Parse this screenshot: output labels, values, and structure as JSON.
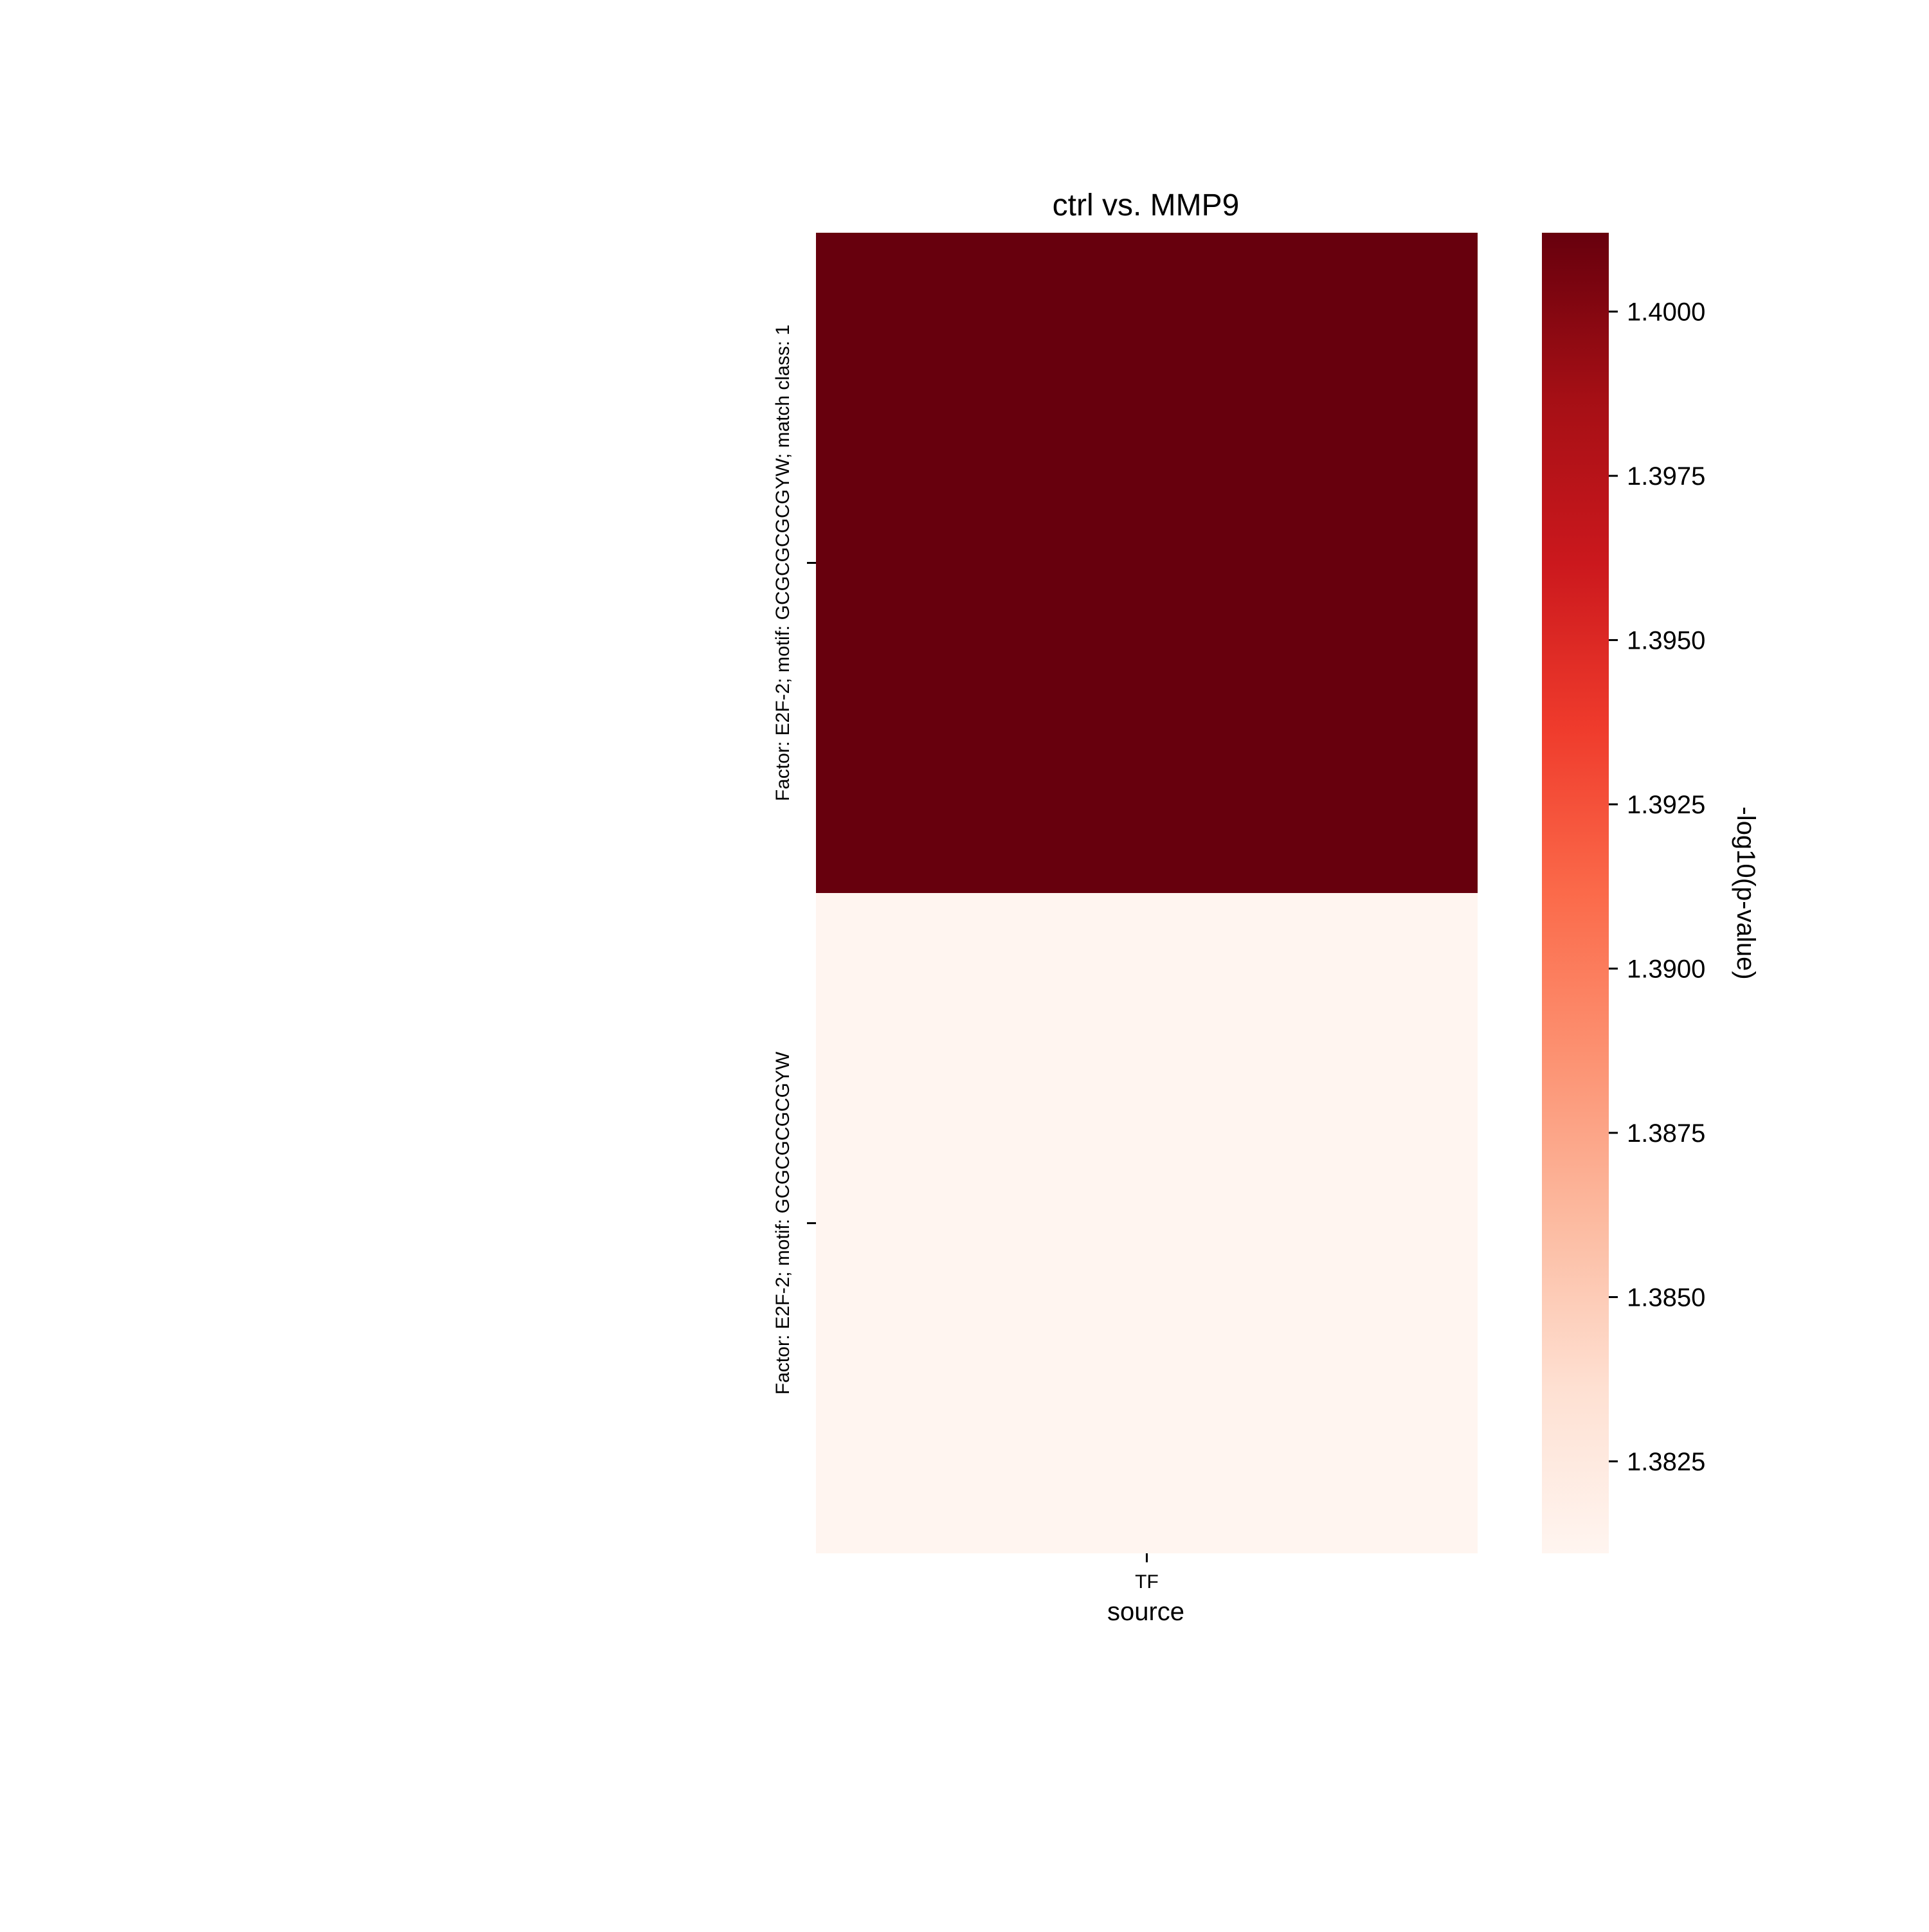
{
  "chart_data": {
    "type": "heatmap",
    "title": "ctrl vs. MMP9",
    "xlabel": "source",
    "ylabel": "",
    "x_categories": [
      "TF"
    ],
    "y_categories": [
      "Factor: E2F-2; motif: GCGCGCGCGYW; match class: 1",
      "Factor: E2F-2; motif: GCGCGCGCGYW"
    ],
    "values": [
      [
        1.4012
      ],
      [
        1.3811
      ]
    ],
    "colorbar": {
      "label": "-log10(p-value)",
      "colormap": "Reds",
      "range": [
        1.3811,
        1.4012
      ],
      "ticks": [
        1.3825,
        1.385,
        1.3875,
        1.39,
        1.3925,
        1.395,
        1.3975,
        1.4
      ],
      "tick_labels": [
        "1.3825",
        "1.3850",
        "1.3875",
        "1.3900",
        "1.3925",
        "1.3950",
        "1.3975",
        "1.4000"
      ]
    },
    "legend": "none",
    "grid": false
  }
}
